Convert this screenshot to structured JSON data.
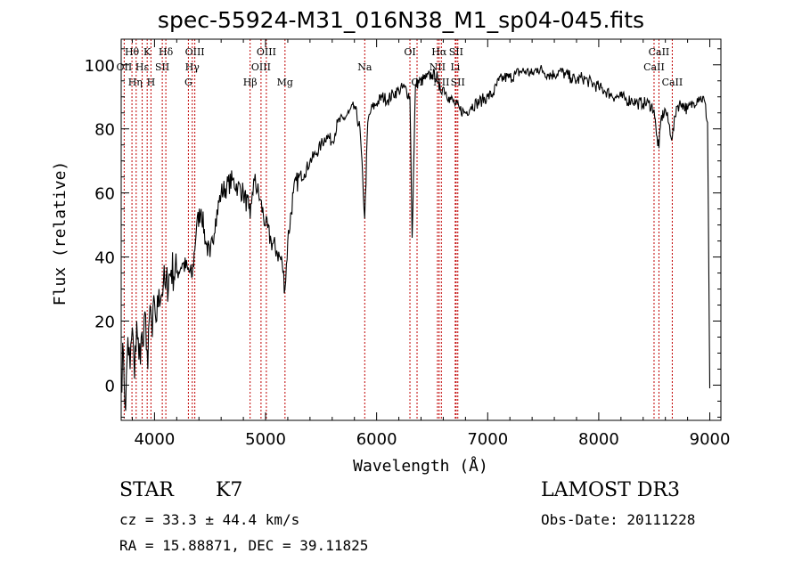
{
  "chart_data": {
    "type": "line",
    "title": "spec-55924-M31_016N38_M1_sp04-045.fits",
    "xlabel": "Wavelength (Å)",
    "ylabel": "Flux (relative)",
    "xlim": [
      3700,
      9100
    ],
    "ylim": [
      -11,
      108
    ],
    "xticks": [
      4000,
      5000,
      6000,
      7000,
      8000,
      9000
    ],
    "yticks": [
      0,
      20,
      40,
      60,
      80,
      100
    ],
    "grid": false,
    "series": [
      {
        "name": "spectrum",
        "x": [
          3700,
          3720,
          3740,
          3760,
          3780,
          3800,
          3820,
          3840,
          3860,
          3880,
          3900,
          3920,
          3940,
          3960,
          3980,
          4000,
          4020,
          4040,
          4060,
          4080,
          4100,
          4150,
          4200,
          4250,
          4300,
          4340,
          4380,
          4420,
          4460,
          4500,
          4550,
          4600,
          4650,
          4700,
          4750,
          4800,
          4850,
          4861,
          4880,
          4900,
          4950,
          5000,
          5050,
          5100,
          5150,
          5175,
          5200,
          5250,
          5300,
          5350,
          5400,
          5450,
          5500,
          5550,
          5600,
          5650,
          5700,
          5750,
          5800,
          5850,
          5893,
          5920,
          5950,
          6000,
          6050,
          6100,
          6150,
          6200,
          6250,
          6300,
          6320,
          6350,
          6400,
          6450,
          6500,
          6550,
          6563,
          6600,
          6650,
          6700,
          6750,
          6800,
          6850,
          6900,
          6950,
          7000,
          7050,
          7100,
          7150,
          7200,
          7250,
          7300,
          7350,
          7400,
          7450,
          7500,
          7550,
          7600,
          7650,
          7700,
          7750,
          7800,
          7850,
          7900,
          7950,
          8000,
          8050,
          8100,
          8150,
          8200,
          8250,
          8300,
          8350,
          8400,
          8450,
          8498,
          8520,
          8542,
          8560,
          8600,
          8662,
          8700,
          8750,
          8800,
          8850,
          8900,
          8950,
          8980,
          9000
        ],
        "values": [
          2,
          10,
          -8,
          15,
          5,
          18,
          2,
          20,
          8,
          15,
          12,
          22,
          5,
          25,
          15,
          26,
          20,
          30,
          28,
          32,
          30,
          36,
          35,
          38,
          36,
          34,
          50,
          55,
          45,
          40,
          52,
          60,
          62,
          64,
          62,
          60,
          55,
          52,
          60,
          64,
          58,
          50,
          45,
          42,
          38,
          30,
          45,
          60,
          65,
          66,
          70,
          72,
          75,
          78,
          76,
          82,
          83,
          85,
          87,
          80,
          52,
          82,
          86,
          88,
          90,
          89,
          91,
          92,
          93,
          90,
          46,
          94,
          95,
          96,
          97,
          96,
          92,
          93,
          90,
          88,
          86,
          85,
          87,
          88,
          89,
          90,
          91,
          95,
          96,
          96,
          97,
          98,
          98,
          97,
          99,
          98,
          97,
          97,
          98,
          97,
          96,
          95,
          96,
          95,
          94,
          93,
          92,
          91,
          90,
          90,
          89,
          89,
          88,
          88,
          88,
          86,
          78,
          74,
          83,
          86,
          77,
          87,
          88,
          86,
          88,
          90,
          89,
          82,
          -1
        ]
      }
    ],
    "lines": [
      {
        "label": "Hθ",
        "wave": 3797,
        "row": 0,
        "off": 0
      },
      {
        "label": "OII",
        "wave": 3727,
        "row": 1,
        "off": 0
      },
      {
        "label": "Hη",
        "wave": 3835,
        "row": 2,
        "off": -1
      },
      {
        "label": "K",
        "wave": 3934,
        "row": 0,
        "off": 0
      },
      {
        "label": "H",
        "wave": 3968,
        "row": 2,
        "off": 0
      },
      {
        "label": "Hε",
        "wave": 3889,
        "row": 1,
        "off": 0
      },
      {
        "label": "SII",
        "wave": 4070,
        "row": 1,
        "off": 0
      },
      {
        "label": "Hδ",
        "wave": 4102,
        "row": 0,
        "off": 0
      },
      {
        "label": "OIII",
        "wave": 4363,
        "row": 0,
        "off": 0
      },
      {
        "label": "Hγ",
        "wave": 4340,
        "row": 1,
        "off": 0
      },
      {
        "label": "G",
        "wave": 4305,
        "row": 2,
        "off": 0
      },
      {
        "label": "Hβ",
        "wave": 4861,
        "row": 2,
        "off": 0
      },
      {
        "label": "OIII",
        "wave": 4959,
        "row": 1,
        "off": 0
      },
      {
        "label": "OIII",
        "wave": 5007,
        "row": 0,
        "off": 0
      },
      {
        "label": "Mg",
        "wave": 5175,
        "row": 2,
        "off": 0
      },
      {
        "label": "Na",
        "wave": 5893,
        "row": 1,
        "off": 0
      },
      {
        "label": "OI",
        "wave": 6300,
        "row": 0,
        "off": 0
      },
      {
        "label": "OI",
        "wave": 6364,
        "row": 2,
        "off": 0
      },
      {
        "label": "NII",
        "wave": 6548,
        "row": 1,
        "off": 0
      },
      {
        "label": "Hα",
        "wave": 6563,
        "row": 0,
        "off": 0
      },
      {
        "label": "NII",
        "wave": 6583,
        "row": 2,
        "off": 0
      },
      {
        "label": "Li",
        "wave": 6708,
        "row": 1,
        "off": 0
      },
      {
        "label": "SII",
        "wave": 6716,
        "row": 0,
        "off": 0
      },
      {
        "label": "SII",
        "wave": 6731,
        "row": 2,
        "off": 0
      },
      {
        "label": "CaII",
        "wave": 8498,
        "row": 1,
        "off": 0
      },
      {
        "label": "CaII",
        "wave": 8542,
        "row": 0,
        "off": 0
      },
      {
        "label": "CaII",
        "wave": 8662,
        "row": 2,
        "off": 0
      }
    ]
  },
  "info": {
    "class": "STAR",
    "subclass": "K7",
    "survey": "LAMOST DR3",
    "cz": "cz = 33.3 ± 44.4 km/s",
    "obs_date": "Obs-Date: 20111228",
    "coords": "RA =  15.88871, DEC =  39.11825"
  },
  "colors": {
    "spectrum": "#000000",
    "line_marker": "#c00000",
    "axis": "#000000"
  }
}
